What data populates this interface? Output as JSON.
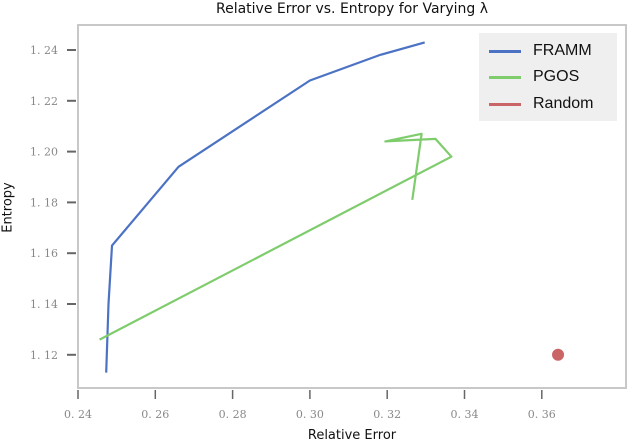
{
  "chart_data": {
    "type": "line",
    "title": "Relative Error vs. Entropy for Varying λ",
    "xlabel": "Relative Error",
    "ylabel": "Entropy",
    "xlim": [
      0.2385,
      0.3705
    ],
    "ylim": [
      1.1099,
      1.2498
    ],
    "xticks": [
      "0.24",
      "0.26",
      "0.28",
      "0.30",
      "0.32",
      "0.34",
      "0.36"
    ],
    "yticks": [
      "1.12",
      "1.14",
      "1.16",
      "1.18",
      "1.20",
      "1.22",
      "1.24"
    ],
    "grid": false,
    "legend_position": "upper right",
    "series": [
      {
        "name": "FRAMM",
        "color": "#4c72c4",
        "marker": "line",
        "x": [
          0.2473,
          0.2479,
          0.2488,
          0.266,
          0.3,
          0.318,
          0.3297
        ],
        "y": [
          1.113,
          1.14,
          1.163,
          1.194,
          1.228,
          1.238,
          1.243
        ]
      },
      {
        "name": "PGOS",
        "color": "#7fcc6c",
        "marker": "line",
        "x": [
          0.2456,
          0.3366,
          0.3325,
          0.3195,
          0.3289,
          0.3265
        ],
        "y": [
          1.126,
          1.198,
          1.205,
          1.204,
          1.207,
          1.181
        ]
      },
      {
        "name": "Random",
        "color": "#c96566",
        "marker": "point",
        "x": [
          0.3642
        ],
        "y": [
          1.12
        ]
      }
    ]
  },
  "legend": {
    "items": [
      {
        "label": "FRAMM",
        "color": "#4c72c4"
      },
      {
        "label": "PGOS",
        "color": "#7fcc6c"
      },
      {
        "label": "Random",
        "color": "#c96566"
      }
    ]
  }
}
